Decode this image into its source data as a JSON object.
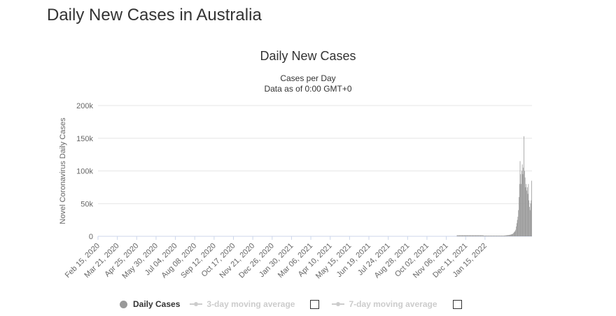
{
  "page": {
    "title": "Daily New Cases in Australia"
  },
  "chart_data": {
    "type": "bar",
    "title": "Daily New Cases",
    "subtitle": "Cases per Day",
    "subtitle2": "Data as of 0:00 GMT+0",
    "ylabel": "Novel Coronavirus Daily Cases",
    "xlabel": "",
    "ylim": [
      0,
      200000
    ],
    "yticks": [
      "0",
      "50k",
      "100k",
      "150k",
      "200k"
    ],
    "ytick_values": [
      0,
      50000,
      100000,
      150000,
      200000
    ],
    "xticks": [
      "Feb 15, 2020",
      "Mar 21, 2020",
      "Apr 25, 2020",
      "May 30, 2020",
      "Jul 04, 2020",
      "Aug 08, 2020",
      "Sep 12, 2020",
      "Oct 17, 2020",
      "Nov 21, 2020",
      "Dec 26, 2020",
      "Jan 30, 2021",
      "Mar 06, 2021",
      "Apr 10, 2021",
      "May 15, 2021",
      "Jun 19, 2021",
      "Jul 24, 2021",
      "Aug 28, 2021",
      "Oct 02, 2021",
      "Nov 06, 2021",
      "Dec 11, 2021",
      "Jan 15, 2022"
    ],
    "series": [
      {
        "name": "Daily Cases",
        "color": "#999999",
        "x_start": "Feb 15, 2020",
        "values": [
          0,
          0,
          0,
          0,
          0,
          0,
          0,
          0,
          0,
          0,
          0,
          0,
          0,
          0,
          0,
          0,
          0,
          0,
          0,
          0,
          0,
          0,
          0,
          0,
          0,
          0,
          0,
          0,
          0,
          0,
          0,
          0,
          0,
          0,
          0,
          0,
          0,
          0,
          0,
          0,
          0,
          0,
          0,
          0,
          0,
          0,
          0,
          0,
          0,
          0,
          0,
          0,
          0,
          0,
          0,
          0,
          0,
          0,
          0,
          0,
          0,
          0,
          0,
          0,
          0,
          0,
          0,
          0,
          0,
          0,
          0,
          0,
          0,
          0,
          0,
          0,
          0,
          0,
          0,
          0,
          0,
          0,
          0,
          0,
          0,
          0,
          0,
          0,
          0,
          0,
          0,
          0,
          0,
          0,
          0,
          0,
          0,
          0,
          0,
          0,
          0,
          0,
          0,
          0,
          0,
          0,
          0,
          0,
          0,
          0,
          0,
          0,
          0,
          0,
          0,
          0,
          0,
          0,
          0,
          0,
          0,
          0,
          0,
          0,
          0,
          0,
          0,
          0,
          0,
          0,
          0,
          0,
          0,
          0,
          0,
          0,
          0,
          0,
          0,
          0,
          0,
          0,
          0,
          0,
          0,
          0,
          0,
          0,
          0,
          0,
          0,
          0,
          0,
          0,
          0,
          0,
          0,
          0,
          0,
          0,
          0,
          0,
          0,
          0,
          0,
          0,
          0,
          0,
          0,
          0,
          0,
          0,
          0,
          0,
          0,
          0,
          0,
          0,
          0,
          0,
          0,
          0,
          0,
          0,
          0,
          0,
          0,
          0,
          0,
          0,
          0,
          0,
          0,
          0,
          0,
          0,
          0,
          0,
          0,
          0,
          0,
          0,
          0,
          0,
          0,
          0,
          0,
          0,
          0,
          0,
          0,
          0,
          0,
          0,
          0,
          0,
          0,
          0,
          0,
          0,
          0,
          0,
          0,
          0,
          0,
          0,
          0,
          0,
          0,
          0,
          0,
          0,
          0,
          0,
          0,
          0,
          0,
          0,
          0,
          0,
          0,
          0,
          0,
          0,
          0,
          0,
          0,
          0,
          0,
          0,
          0,
          0,
          0,
          0,
          0,
          0,
          0,
          0,
          0,
          0,
          0,
          0,
          0,
          0,
          0,
          0,
          0,
          0,
          0,
          0,
          0,
          0,
          0,
          0,
          0,
          0,
          0,
          0,
          0,
          0,
          0,
          0,
          0,
          0,
          0,
          0,
          0,
          0,
          0,
          0,
          0,
          0,
          0,
          0,
          0,
          0,
          0,
          0,
          0,
          0,
          0,
          0,
          0,
          0,
          0,
          0,
          0,
          0,
          0,
          0,
          0,
          0,
          0,
          0,
          0,
          0,
          0,
          0,
          0,
          0,
          0,
          0,
          0,
          0,
          0,
          0,
          0,
          0,
          0,
          0,
          0,
          0,
          0,
          0,
          0,
          0,
          0,
          0,
          0,
          0,
          0,
          0,
          0,
          0,
          0,
          0,
          0,
          0,
          0,
          0,
          0,
          0,
          0,
          0,
          0,
          0,
          0,
          0,
          0,
          0,
          0,
          0,
          0,
          0,
          0,
          0,
          0,
          0,
          0,
          0,
          0,
          0,
          0,
          0,
          0,
          0,
          0,
          0,
          0,
          0,
          0,
          0,
          0,
          0,
          0,
          0,
          0,
          0,
          0,
          0,
          0,
          0,
          0,
          0,
          0,
          0,
          0,
          0,
          0,
          0,
          0,
          0,
          0,
          0,
          0,
          0,
          0,
          0,
          0,
          0,
          0,
          0,
          0,
          0,
          0,
          0,
          0,
          0,
          0,
          0,
          0,
          0,
          0,
          0,
          0,
          0,
          0,
          0,
          0,
          0,
          0,
          0,
          0,
          0,
          0,
          0,
          0,
          0,
          0,
          0,
          0,
          0,
          0,
          0,
          0,
          0,
          0,
          0,
          0,
          0,
          0,
          0,
          0,
          0,
          0,
          0,
          0,
          0,
          0,
          0,
          0,
          0,
          0,
          0,
          0,
          0,
          0,
          0,
          0,
          0,
          0,
          0,
          0,
          0,
          0,
          0,
          0,
          0,
          0,
          0,
          0,
          0,
          0,
          0,
          0,
          0,
          0,
          0,
          0,
          0,
          0,
          0,
          0,
          0,
          0,
          0,
          0,
          0,
          0,
          0,
          0,
          0,
          0,
          0,
          0,
          0,
          0,
          0,
          0,
          0,
          0,
          0,
          0,
          0,
          0,
          0,
          0,
          0,
          0,
          0,
          0,
          0,
          0,
          0,
          0,
          0,
          0,
          0,
          0,
          0,
          0,
          0,
          0,
          0,
          0,
          0,
          0,
          0,
          0,
          0,
          0,
          0,
          0,
          0,
          0,
          0,
          0,
          0,
          0,
          0,
          0,
          0,
          0,
          0,
          0,
          0,
          0,
          0,
          0,
          0,
          0,
          0,
          0,
          0,
          0,
          0,
          0,
          0,
          0,
          0,
          0,
          0,
          0,
          0,
          0,
          0,
          0,
          0,
          0,
          0,
          0,
          0,
          0,
          0,
          0,
          0,
          0,
          0,
          0,
          0,
          0,
          0,
          0,
          0,
          0,
          0,
          0,
          0,
          0,
          0,
          0,
          0,
          0,
          0,
          0,
          0,
          0,
          0,
          0,
          0,
          0,
          0,
          0,
          0,
          0,
          0,
          0,
          0,
          0,
          0,
          0,
          0,
          0,
          0,
          0,
          0,
          0,
          0,
          0,
          0,
          0,
          0,
          0,
          0,
          0,
          0,
          0,
          0,
          0,
          0,
          0,
          0,
          0,
          0,
          0,
          0,
          0,
          0,
          0,
          1500,
          1500,
          1500,
          1500,
          1500,
          1500,
          1500,
          1500,
          1500,
          1500,
          1500,
          1500,
          1500,
          1500,
          1500,
          1500,
          1500,
          1500,
          1500,
          1500,
          1500,
          1500,
          1500,
          1500,
          1500,
          1500,
          1500,
          1500,
          1500,
          1500,
          1500,
          1500,
          1500,
          1500,
          1500,
          1500,
          1500,
          1500,
          1500,
          1500,
          1500,
          1500,
          1500,
          1500,
          1500,
          1500,
          1500,
          1500,
          1000,
          1000,
          1000,
          1000,
          1000,
          1000,
          1000,
          1000,
          1000,
          1000,
          1000,
          1000,
          1000,
          1000,
          1000,
          1000,
          1000,
          1000,
          1000,
          1000,
          1000,
          1000,
          1000,
          1000,
          1000,
          1000,
          1000,
          1000,
          1000,
          1000,
          1000,
          1000,
          1000,
          1000,
          1000,
          1000,
          1000,
          1000,
          1200,
          1200,
          1500,
          1500,
          1500,
          1800,
          1800,
          2000,
          2000,
          2000,
          2500,
          2500,
          3000,
          3000,
          3500,
          4000,
          5000,
          6000,
          7000,
          8000,
          10000,
          15000,
          20000,
          25000,
          30000,
          40000,
          60000,
          80000,
          115000,
          95000,
          80000,
          100000,
          110000,
          95000,
          105000,
          153000,
          100000,
          90000,
          75000,
          80000,
          70000,
          75000,
          65000,
          80000,
          55000,
          45000,
          40000,
          50000,
          55000,
          85000
        ]
      },
      {
        "name": "3-day moving average",
        "enabled": false
      },
      {
        "name": "7-day moving average",
        "enabled": false
      }
    ]
  }
}
